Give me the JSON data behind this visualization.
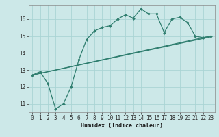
{
  "title": "",
  "xlabel": "Humidex (Indice chaleur)",
  "bg_color": "#cce8e8",
  "line_color": "#2e7d6e",
  "grid_color": "#aad4d4",
  "xlim": [
    -0.5,
    23.5
  ],
  "ylim": [
    10.5,
    16.8
  ],
  "xticks": [
    0,
    1,
    2,
    3,
    4,
    5,
    6,
    7,
    8,
    9,
    10,
    11,
    12,
    13,
    14,
    15,
    16,
    17,
    18,
    19,
    20,
    21,
    22,
    23
  ],
  "yticks": [
    11,
    12,
    13,
    14,
    15,
    16
  ],
  "line1": {
    "x": [
      0,
      1,
      2,
      3,
      4,
      5,
      6,
      7,
      8,
      9,
      10,
      11,
      12,
      13,
      14,
      15,
      16,
      17,
      18,
      19,
      20,
      21,
      22,
      23
    ],
    "y": [
      12.7,
      12.9,
      12.2,
      10.7,
      11.0,
      12.0,
      13.6,
      14.8,
      15.3,
      15.5,
      15.6,
      16.0,
      16.25,
      16.05,
      16.6,
      16.3,
      16.3,
      15.2,
      16.0,
      16.1,
      15.8,
      15.0,
      14.9,
      15.0
    ]
  },
  "line2": {
    "x": [
      0,
      23
    ],
    "y": [
      12.7,
      15.0
    ]
  },
  "line3": {
    "x": [
      0,
      23
    ],
    "y": [
      12.7,
      14.95
    ]
  }
}
